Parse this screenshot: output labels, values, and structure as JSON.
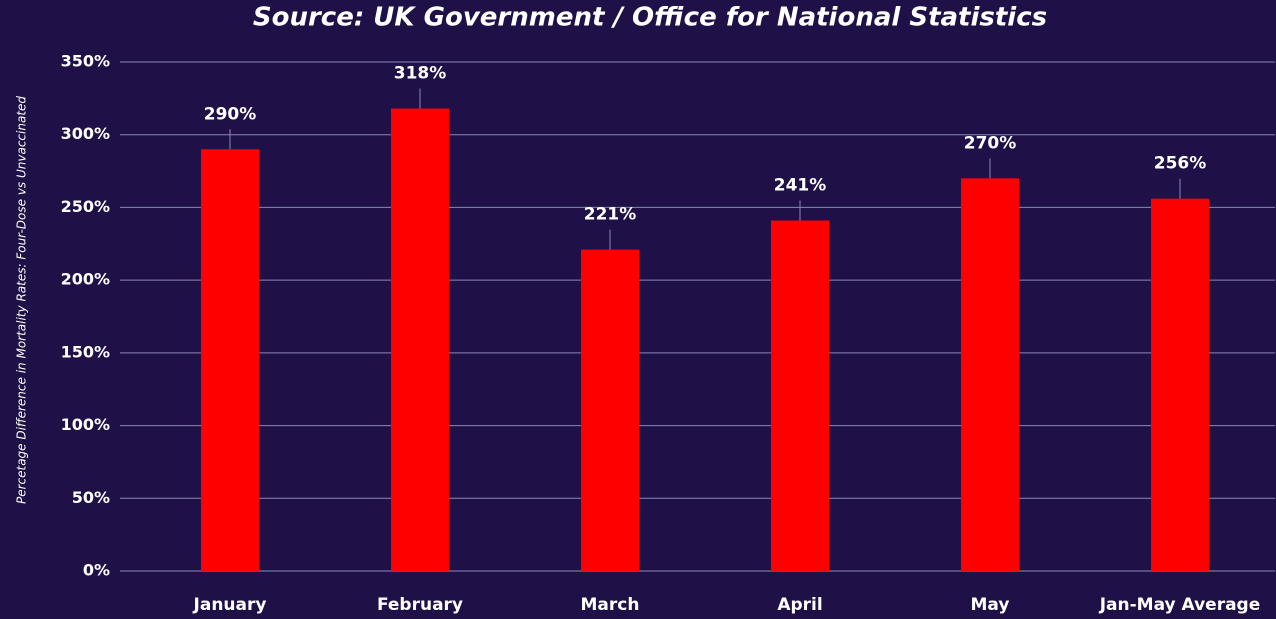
{
  "chart_data": {
    "type": "bar",
    "title": "Source: UK Government / Office for National Statistics",
    "y_label": "Percetage Difference in Mortality Rates: Four-Dose vs Unvaccinated",
    "categories": [
      "January",
      "February",
      "March",
      "April",
      "May",
      "Jan-May Average"
    ],
    "values": [
      290,
      318,
      221,
      241,
      270,
      256
    ],
    "value_labels": [
      "290%",
      "318%",
      "221%",
      "241%",
      "270%",
      "256%"
    ],
    "color": "#ff0000",
    "ylim": [
      0,
      350
    ],
    "yticks": [
      {
        "value": 0,
        "label": "0%"
      },
      {
        "value": 50,
        "label": "50%"
      },
      {
        "value": 100,
        "label": "100%"
      },
      {
        "value": 150,
        "label": "150%"
      },
      {
        "value": 200,
        "label": "200%"
      },
      {
        "value": 250,
        "label": "250%"
      },
      {
        "value": 300,
        "label": "300%"
      },
      {
        "value": 350,
        "label": "350%"
      }
    ],
    "grid": true
  }
}
